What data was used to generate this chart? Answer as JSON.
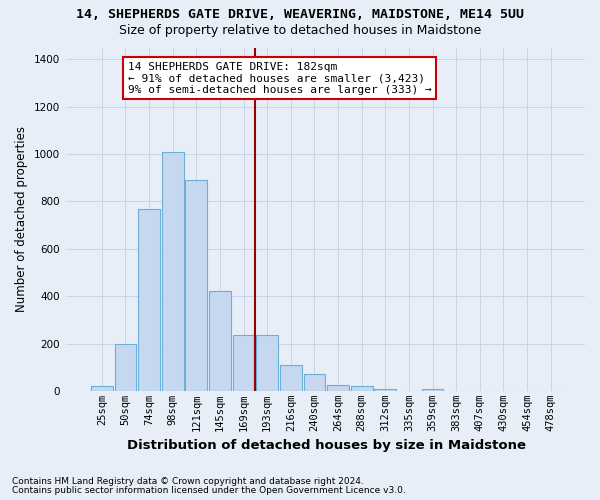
{
  "title_line1": "14, SHEPHERDS GATE DRIVE, WEAVERING, MAIDSTONE, ME14 5UU",
  "title_line2": "Size of property relative to detached houses in Maidstone",
  "xlabel": "Distribution of detached houses by size in Maidstone",
  "ylabel": "Number of detached properties",
  "footnote1": "Contains HM Land Registry data © Crown copyright and database right 2024.",
  "footnote2": "Contains public sector information licensed under the Open Government Licence v3.0.",
  "bar_labels": [
    "25sqm",
    "50sqm",
    "74sqm",
    "98sqm",
    "121sqm",
    "145sqm",
    "169sqm",
    "193sqm",
    "216sqm",
    "240sqm",
    "264sqm",
    "288sqm",
    "312sqm",
    "335sqm",
    "359sqm",
    "383sqm",
    "407sqm",
    "430sqm",
    "454sqm",
    "478sqm"
  ],
  "bar_values": [
    20,
    200,
    770,
    1010,
    890,
    420,
    235,
    235,
    110,
    70,
    25,
    20,
    10,
    0,
    10,
    0,
    0,
    0,
    0,
    0
  ],
  "bar_color": "#c5d8f0",
  "bar_edgecolor": "#6baed6",
  "vline_color": "#990000",
  "vline_pos": 6.5,
  "ylim_max": 1450,
  "yticks": [
    0,
    200,
    400,
    600,
    800,
    1000,
    1200,
    1400
  ],
  "annotation_text": "14 SHEPHERDS GATE DRIVE: 182sqm\n← 91% of detached houses are smaller (3,423)\n9% of semi-detached houses are larger (333) →",
  "annotation_box_edgecolor": "#cc0000",
  "grid_color": "#c8d4e8",
  "bg_color": "#e8eef8",
  "title1_fontsize": 9.5,
  "title2_fontsize": 9.0,
  "ylabel_fontsize": 8.5,
  "xlabel_fontsize": 9.5,
  "tick_fontsize": 7.5,
  "annot_fontsize": 8.0
}
